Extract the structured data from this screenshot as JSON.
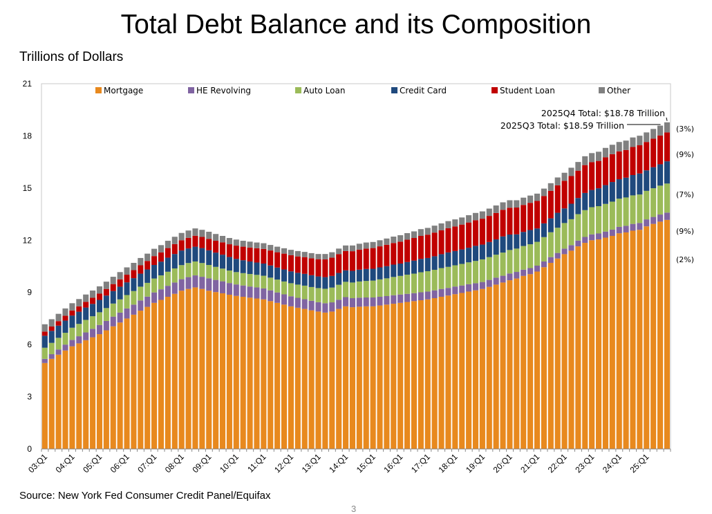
{
  "chart_data": {
    "type": "bar",
    "stacked": true,
    "title": "Total Debt Balance and its Composition",
    "ylabel": "Trillions of Dollars",
    "xlabel": "",
    "ylim": [
      0,
      21
    ],
    "yticks": [
      0,
      3,
      6,
      9,
      12,
      15,
      18,
      21
    ],
    "grid": false,
    "legend_placement": "top",
    "x_tick_labels": [
      "03:Q1",
      "04:Q1",
      "05:Q1",
      "06:Q1",
      "07:Q1",
      "08:Q1",
      "09:Q1",
      "10:Q1",
      "11:Q1",
      "12:Q1",
      "13:Q1",
      "14:Q1",
      "15:Q1",
      "16:Q1",
      "17:Q1",
      "18:Q1",
      "19:Q1",
      "20:Q1",
      "21:Q1",
      "22:Q1",
      "23:Q1",
      "24:Q1",
      "25:Q1"
    ],
    "series": [
      {
        "name": "Mortgage",
        "color": "#E8891E",
        "values": [
          4.94,
          5.18,
          5.42,
          5.66,
          5.9,
          6.07,
          6.25,
          6.42,
          6.6,
          6.82,
          7.05,
          7.27,
          7.5,
          7.72,
          7.95,
          8.17,
          8.4,
          8.57,
          8.75,
          8.92,
          9.1,
          9.2,
          9.29,
          9.2,
          9.1,
          9.02,
          8.95,
          8.87,
          8.8,
          8.75,
          8.7,
          8.65,
          8.6,
          8.5,
          8.4,
          8.3,
          8.2,
          8.12,
          8.05,
          7.97,
          7.9,
          7.84,
          7.9,
          8.05,
          8.2,
          8.15,
          8.18,
          8.2,
          8.2,
          8.25,
          8.3,
          8.35,
          8.4,
          8.45,
          8.5,
          8.55,
          8.6,
          8.67,
          8.75,
          8.82,
          8.9,
          8.97,
          9.05,
          9.12,
          9.2,
          9.32,
          9.45,
          9.57,
          9.7,
          9.8,
          9.95,
          10.05,
          10.2,
          10.45,
          10.7,
          10.95,
          11.2,
          11.4,
          11.65,
          11.85,
          12.0,
          12.05,
          12.15,
          12.25,
          12.4,
          12.45,
          12.55,
          12.6,
          12.8,
          12.94,
          13.07,
          13.17
        ]
      },
      {
        "name": "HE Revolving",
        "color": "#8064A2",
        "values": [
          0.24,
          0.27,
          0.3,
          0.34,
          0.37,
          0.41,
          0.45,
          0.49,
          0.53,
          0.54,
          0.56,
          0.57,
          0.58,
          0.58,
          0.59,
          0.59,
          0.6,
          0.61,
          0.63,
          0.65,
          0.66,
          0.68,
          0.69,
          0.7,
          0.71,
          0.7,
          0.69,
          0.67,
          0.66,
          0.65,
          0.64,
          0.64,
          0.63,
          0.62,
          0.6,
          0.59,
          0.58,
          0.57,
          0.56,
          0.55,
          0.54,
          0.54,
          0.53,
          0.53,
          0.53,
          0.52,
          0.52,
          0.51,
          0.51,
          0.5,
          0.49,
          0.49,
          0.48,
          0.47,
          0.46,
          0.46,
          0.45,
          0.45,
          0.45,
          0.44,
          0.44,
          0.43,
          0.42,
          0.41,
          0.4,
          0.4,
          0.4,
          0.39,
          0.39,
          0.38,
          0.36,
          0.35,
          0.34,
          0.33,
          0.33,
          0.32,
          0.32,
          0.32,
          0.33,
          0.34,
          0.34,
          0.34,
          0.35,
          0.36,
          0.37,
          0.38,
          0.39,
          0.39,
          0.4,
          0.4,
          0.41,
          0.42
        ]
      },
      {
        "name": "Auto Loan",
        "color": "#9BBB59",
        "values": [
          0.64,
          0.65,
          0.67,
          0.68,
          0.7,
          0.71,
          0.72,
          0.72,
          0.73,
          0.74,
          0.75,
          0.76,
          0.77,
          0.78,
          0.79,
          0.79,
          0.8,
          0.8,
          0.81,
          0.81,
          0.81,
          0.81,
          0.8,
          0.79,
          0.77,
          0.75,
          0.73,
          0.72,
          0.71,
          0.71,
          0.72,
          0.72,
          0.73,
          0.73,
          0.74,
          0.74,
          0.75,
          0.76,
          0.78,
          0.79,
          0.81,
          0.83,
          0.85,
          0.86,
          0.88,
          0.9,
          0.93,
          0.95,
          0.97,
          1.0,
          1.02,
          1.05,
          1.07,
          1.1,
          1.12,
          1.15,
          1.17,
          1.18,
          1.2,
          1.21,
          1.22,
          1.24,
          1.26,
          1.28,
          1.3,
          1.31,
          1.32,
          1.33,
          1.35,
          1.34,
          1.36,
          1.37,
          1.37,
          1.4,
          1.43,
          1.45,
          1.47,
          1.49,
          1.52,
          1.54,
          1.56,
          1.57,
          1.59,
          1.61,
          1.62,
          1.63,
          1.64,
          1.64,
          1.64,
          1.65,
          1.66,
          1.67
        ]
      },
      {
        "name": "Credit Card",
        "color": "#1F497D",
        "values": [
          0.69,
          0.69,
          0.7,
          0.7,
          0.7,
          0.7,
          0.71,
          0.71,
          0.71,
          0.72,
          0.72,
          0.73,
          0.73,
          0.74,
          0.75,
          0.77,
          0.78,
          0.79,
          0.81,
          0.83,
          0.84,
          0.84,
          0.85,
          0.86,
          0.84,
          0.82,
          0.8,
          0.78,
          0.76,
          0.74,
          0.72,
          0.71,
          0.7,
          0.7,
          0.69,
          0.69,
          0.68,
          0.68,
          0.68,
          0.68,
          0.67,
          0.67,
          0.67,
          0.68,
          0.66,
          0.67,
          0.68,
          0.69,
          0.68,
          0.69,
          0.7,
          0.71,
          0.71,
          0.73,
          0.75,
          0.77,
          0.76,
          0.78,
          0.8,
          0.83,
          0.82,
          0.83,
          0.84,
          0.87,
          0.85,
          0.87,
          0.88,
          0.93,
          0.89,
          0.82,
          0.81,
          0.82,
          0.77,
          0.79,
          0.8,
          0.86,
          0.84,
          0.89,
          0.93,
          0.99,
          0.99,
          1.03,
          1.08,
          1.13,
          1.12,
          1.14,
          1.17,
          1.21,
          1.18,
          1.21,
          1.23,
          1.28
        ]
      },
      {
        "name": "Student Loan",
        "color": "#C00000",
        "values": [
          0.24,
          0.25,
          0.26,
          0.28,
          0.29,
          0.31,
          0.33,
          0.35,
          0.36,
          0.38,
          0.4,
          0.42,
          0.44,
          0.46,
          0.48,
          0.49,
          0.51,
          0.53,
          0.55,
          0.57,
          0.59,
          0.61,
          0.63,
          0.64,
          0.66,
          0.68,
          0.71,
          0.73,
          0.76,
          0.78,
          0.8,
          0.82,
          0.84,
          0.86,
          0.88,
          0.91,
          0.93,
          0.94,
          0.96,
          0.97,
          0.99,
          1.02,
          1.05,
          1.08,
          1.11,
          1.13,
          1.15,
          1.17,
          1.19,
          1.21,
          1.23,
          1.24,
          1.26,
          1.28,
          1.3,
          1.32,
          1.34,
          1.36,
          1.37,
          1.39,
          1.41,
          1.43,
          1.45,
          1.47,
          1.49,
          1.5,
          1.52,
          1.53,
          1.54,
          1.54,
          1.55,
          1.56,
          1.58,
          1.57,
          1.58,
          1.58,
          1.59,
          1.59,
          1.57,
          1.6,
          1.6,
          1.57,
          1.6,
          1.6,
          1.6,
          1.59,
          1.61,
          1.62,
          1.63,
          1.64,
          1.65,
          1.66
        ]
      },
      {
        "name": "Other",
        "color": "#808080",
        "values": [
          0.42,
          0.42,
          0.42,
          0.42,
          0.42,
          0.42,
          0.42,
          0.42,
          0.42,
          0.42,
          0.42,
          0.42,
          0.42,
          0.42,
          0.42,
          0.42,
          0.42,
          0.42,
          0.42,
          0.42,
          0.42,
          0.42,
          0.42,
          0.41,
          0.41,
          0.39,
          0.37,
          0.36,
          0.35,
          0.34,
          0.34,
          0.33,
          0.33,
          0.32,
          0.32,
          0.31,
          0.31,
          0.31,
          0.3,
          0.3,
          0.3,
          0.31,
          0.31,
          0.32,
          0.32,
          0.33,
          0.34,
          0.35,
          0.35,
          0.35,
          0.36,
          0.37,
          0.37,
          0.38,
          0.38,
          0.39,
          0.39,
          0.4,
          0.4,
          0.41,
          0.41,
          0.41,
          0.42,
          0.42,
          0.42,
          0.42,
          0.43,
          0.43,
          0.43,
          0.42,
          0.42,
          0.42,
          0.42,
          0.43,
          0.44,
          0.45,
          0.46,
          0.48,
          0.5,
          0.51,
          0.52,
          0.53,
          0.54,
          0.54,
          0.54,
          0.54,
          0.55,
          0.55,
          0.55,
          0.56,
          0.57,
          0.58
        ]
      }
    ],
    "annotations": {
      "q4_total": "2025Q4 Total: $18.78 Trillion",
      "q3_total": "2025Q3 Total: $18.59 Trillion"
    },
    "share_labels": [
      "(3%)",
      "(9%)",
      "(7%)",
      "(9%)",
      "(2%)"
    ]
  },
  "source": "Source: New York Fed Consumer Credit Panel/Equifax",
  "page_number": "3"
}
